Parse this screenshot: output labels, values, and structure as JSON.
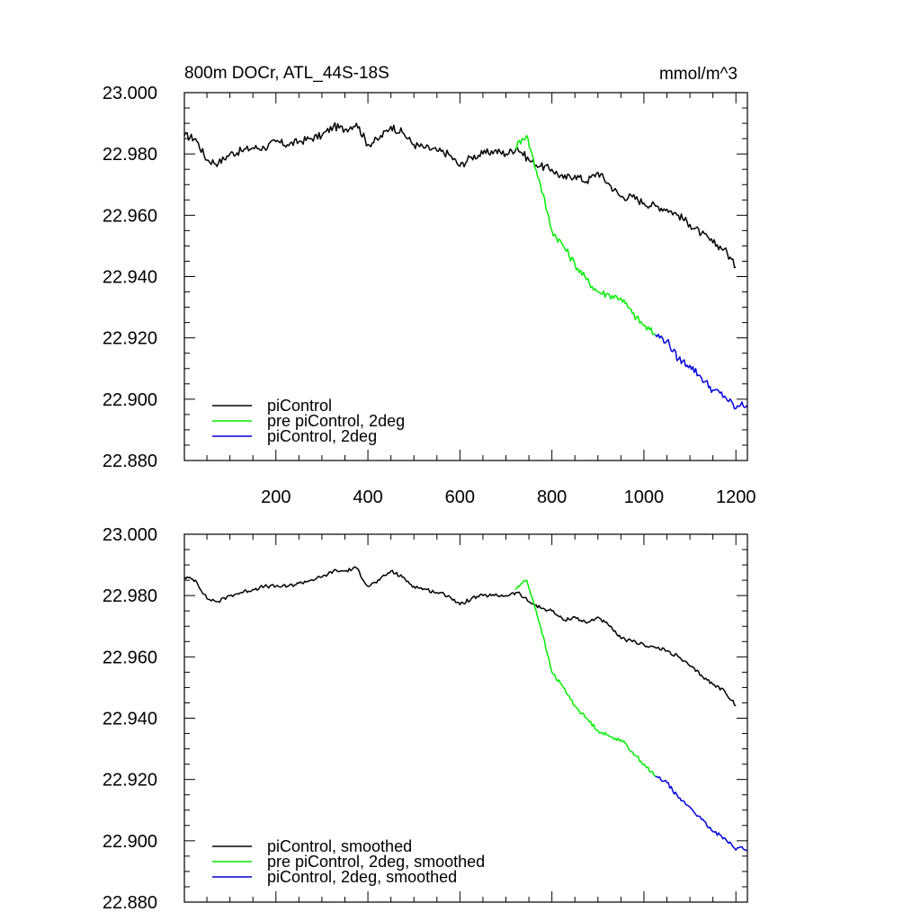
{
  "header": {
    "left_title": "800m DOCr, ATL_44S-18S",
    "right_title": "mmol/m^3"
  },
  "chart_data": [
    {
      "type": "line",
      "panel": "top",
      "title": "800m DOCr, ATL_44S-18S",
      "units": "mmol/m^3",
      "xlim": [
        1,
        1225
      ],
      "ylim": [
        22.88,
        23.0
      ],
      "xticks": [
        200,
        400,
        600,
        800,
        1000,
        1200
      ],
      "xtick_labels": [
        "200",
        "400",
        "600",
        "800",
        "1000",
        "1200"
      ],
      "yticks": [
        22.88,
        22.9,
        22.92,
        22.94,
        22.96,
        22.98,
        23.0
      ],
      "ytick_labels": [
        "22.880",
        "22.900",
        "22.920",
        "22.940",
        "22.960",
        "22.980",
        "23.000"
      ],
      "legend_position": "bottom-left",
      "series": [
        {
          "name": "piControl",
          "color": "#000000",
          "x": [
            1,
            25,
            50,
            75,
            100,
            125,
            150,
            175,
            200,
            225,
            250,
            275,
            300,
            325,
            350,
            375,
            400,
            425,
            450,
            475,
            500,
            525,
            550,
            575,
            600,
            625,
            650,
            675,
            700,
            725,
            750,
            775,
            800,
            825,
            850,
            875,
            900,
            925,
            950,
            975,
            1000,
            1025,
            1050,
            1075,
            1100,
            1125,
            1150,
            1175,
            1200
          ],
          "y": [
            22.986,
            22.985,
            22.978,
            22.977,
            22.98,
            22.981,
            22.982,
            22.982,
            22.984,
            22.983,
            22.984,
            22.985,
            22.986,
            22.989,
            22.988,
            22.99,
            22.983,
            22.985,
            22.989,
            22.987,
            22.983,
            22.982,
            22.981,
            22.98,
            22.976,
            22.979,
            22.98,
            22.981,
            22.98,
            22.982,
            22.978,
            22.976,
            22.975,
            22.972,
            22.973,
            22.971,
            22.974,
            22.97,
            22.966,
            22.966,
            22.964,
            22.963,
            22.962,
            22.96,
            22.957,
            22.954,
            22.951,
            22.949,
            22.943
          ]
        },
        {
          "name": "pre piControl, 2deg",
          "color": "#00ee00",
          "x": [
            720,
            735,
            745,
            760,
            775,
            790,
            800,
            825,
            850,
            875,
            900,
            925,
            950,
            975,
            1000,
            1025
          ],
          "y": [
            22.982,
            22.985,
            22.986,
            22.978,
            22.97,
            22.961,
            22.955,
            22.95,
            22.944,
            22.939,
            22.935,
            22.934,
            22.933,
            22.928,
            22.924,
            22.921
          ]
        },
        {
          "name": "piControl, 2deg",
          "color": "#0000dd",
          "x": [
            1025,
            1050,
            1075,
            1100,
            1125,
            1150,
            1175,
            1200,
            1210,
            1225
          ],
          "y": [
            22.921,
            22.919,
            22.913,
            22.911,
            22.907,
            22.903,
            22.901,
            22.897,
            22.898,
            22.898
          ]
        }
      ]
    },
    {
      "type": "line",
      "panel": "bottom",
      "xlim": [
        1,
        1225
      ],
      "ylim": [
        22.88,
        23.0
      ],
      "yticks": [
        22.88,
        22.9,
        22.92,
        22.94,
        22.96,
        22.98,
        23.0
      ],
      "ytick_labels": [
        "22.880",
        "22.900",
        "22.920",
        "22.940",
        "22.960",
        "22.980",
        "23.000"
      ],
      "legend_position": "bottom-left",
      "series": [
        {
          "name": "piControl, smoothed",
          "color": "#000000",
          "x": [
            1,
            25,
            50,
            75,
            100,
            125,
            150,
            175,
            200,
            225,
            250,
            275,
            300,
            325,
            350,
            375,
            400,
            425,
            450,
            475,
            500,
            525,
            550,
            575,
            600,
            625,
            650,
            675,
            700,
            725,
            750,
            775,
            800,
            825,
            850,
            875,
            900,
            925,
            950,
            975,
            1000,
            1025,
            1050,
            1075,
            1100,
            1125,
            1150,
            1175,
            1200
          ],
          "y": [
            22.986,
            22.985,
            22.979,
            22.978,
            22.98,
            22.981,
            22.982,
            22.983,
            22.983,
            22.983,
            22.984,
            22.985,
            22.986,
            22.988,
            22.988,
            22.989,
            22.983,
            22.985,
            22.988,
            22.986,
            22.983,
            22.982,
            22.981,
            22.98,
            22.977,
            22.979,
            22.98,
            22.98,
            22.98,
            22.981,
            22.978,
            22.976,
            22.975,
            22.972,
            22.973,
            22.971,
            22.973,
            22.97,
            22.966,
            22.965,
            22.964,
            22.963,
            22.962,
            22.96,
            22.957,
            22.954,
            22.951,
            22.949,
            22.944
          ]
        },
        {
          "name": "pre piControl, 2deg, smoothed",
          "color": "#00ee00",
          "x": [
            720,
            735,
            745,
            760,
            775,
            790,
            800,
            825,
            850,
            875,
            900,
            925,
            950,
            975,
            1000,
            1025
          ],
          "y": [
            22.982,
            22.984,
            22.985,
            22.978,
            22.97,
            22.961,
            22.955,
            22.95,
            22.944,
            22.94,
            22.936,
            22.934,
            22.933,
            22.929,
            22.925,
            22.921
          ]
        },
        {
          "name": "piControl, 2deg, smoothed",
          "color": "#0000dd",
          "x": [
            1025,
            1050,
            1075,
            1100,
            1125,
            1150,
            1175,
            1190,
            1200,
            1210,
            1225
          ],
          "y": [
            22.921,
            22.919,
            22.914,
            22.911,
            22.907,
            22.903,
            22.901,
            22.899,
            22.897,
            22.898,
            22.897
          ]
        }
      ]
    }
  ]
}
